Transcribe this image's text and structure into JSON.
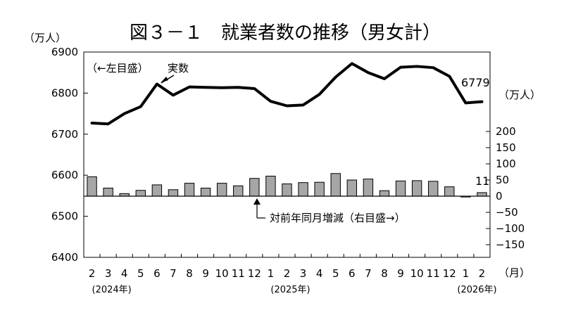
{
  "chart_data": {
    "type": "bar+line",
    "title": "図３－１　就業者数の推移（男女計）",
    "left_axis": {
      "unit_label": "（万人）",
      "ylim": [
        6400,
        6900
      ],
      "ticks": [
        6400,
        6500,
        6600,
        6700,
        6800,
        6900
      ],
      "tick_labels": [
        "6400",
        "6500",
        "6600",
        "6700",
        "6800",
        "6900"
      ]
    },
    "right_axis": {
      "unit_label": "（万人）",
      "ylim": [
        -150,
        250
      ],
      "ticks": [
        -150,
        -100,
        -50,
        0,
        50,
        100,
        150,
        200
      ],
      "tick_labels": [
        "−150",
        "−100",
        "−50",
        "0",
        "50",
        "100",
        "150",
        "200"
      ]
    },
    "x_axis": {
      "unit_label": "（月）",
      "categories": [
        "2",
        "3",
        "4",
        "5",
        "6",
        "7",
        "8",
        "9",
        "10",
        "11",
        "12",
        "1",
        "2",
        "3",
        "4",
        "5",
        "6",
        "7",
        "8",
        "9",
        "10",
        "11",
        "12",
        "1",
        "2"
      ],
      "year_labels": [
        {
          "text": "(2024年)",
          "index": 0
        },
        {
          "text": "(2025年)",
          "index": 11
        },
        {
          "text": "(2026年)",
          "index": 23
        }
      ]
    },
    "series": [
      {
        "name": "実数",
        "type": "line",
        "axis": "left",
        "color": "#000000",
        "values": [
          6727,
          6725,
          6750,
          6767,
          6822,
          6795,
          6815,
          6814,
          6813,
          6814,
          6811,
          6780,
          6769,
          6771,
          6797,
          6839,
          6872,
          6850,
          6835,
          6863,
          6865,
          6862,
          6841,
          6776,
          6779
        ]
      },
      {
        "name": "対前年同月増減",
        "type": "bar",
        "axis": "right",
        "color": "#a6a6a6",
        "values": [
          60,
          25,
          8,
          18,
          35,
          20,
          40,
          25,
          40,
          32,
          55,
          62,
          38,
          42,
          43,
          70,
          50,
          53,
          17,
          47,
          48,
          46,
          29,
          -2,
          11
        ]
      }
    ],
    "annotations": {
      "line_label_prefix": "（←左目盛）",
      "line_label": "実数",
      "bar_label": "対前年同月増減（右目盛→）",
      "last_line_value": "6779",
      "last_bar_value": "11"
    }
  }
}
